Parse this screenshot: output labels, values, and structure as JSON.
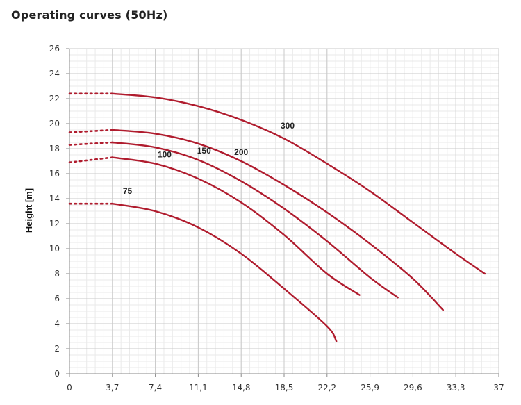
{
  "page_title": "Operating curves (50Hz)",
  "chart_data": {
    "type": "line",
    "title": "Operating curves (50Hz)",
    "xlabel": "",
    "ylabel": "Height [m]",
    "x_ticks": [
      "0",
      "3,7",
      "7,4",
      "11,1",
      "14,8",
      "18,5",
      "22,2",
      "25,9",
      "29,6",
      "33,3",
      "37"
    ],
    "y_ticks": [
      "0",
      "2",
      "4",
      "6",
      "8",
      "10",
      "12",
      "14",
      "16",
      "18",
      "20",
      "22",
      "24",
      "26"
    ],
    "xlim": [
      0,
      37
    ],
    "ylim": [
      0,
      26
    ],
    "grid": true,
    "line_color": "#b01c2e",
    "series": [
      {
        "name": "75",
        "dotted_segment": [
          [
            0,
            13.6
          ],
          [
            3.7,
            13.6
          ]
        ],
        "x": [
          3.7,
          7.4,
          11.1,
          14.8,
          18.5,
          22.2,
          23.0
        ],
        "y": [
          13.6,
          13.0,
          11.7,
          9.6,
          6.8,
          3.8,
          2.6
        ]
      },
      {
        "name": "100",
        "dotted_segment": [
          [
            0,
            16.9
          ],
          [
            3.7,
            17.3
          ]
        ],
        "x": [
          3.7,
          7.4,
          11.1,
          14.8,
          18.5,
          22.2,
          25.0
        ],
        "y": [
          17.3,
          16.8,
          15.6,
          13.7,
          11.1,
          8.0,
          6.3
        ]
      },
      {
        "name": "150",
        "dotted_segment": [
          [
            0,
            18.3
          ],
          [
            3.7,
            18.5
          ]
        ],
        "x": [
          3.7,
          7.4,
          11.1,
          14.8,
          18.5,
          22.2,
          25.9,
          28.3
        ],
        "y": [
          18.5,
          18.1,
          17.1,
          15.4,
          13.2,
          10.6,
          7.7,
          6.1
        ]
      },
      {
        "name": "200",
        "dotted_segment": [
          [
            0,
            19.3
          ],
          [
            3.7,
            19.5
          ]
        ],
        "x": [
          3.7,
          7.4,
          11.1,
          14.8,
          18.5,
          22.2,
          25.9,
          29.6,
          32.2
        ],
        "y": [
          19.5,
          19.2,
          18.4,
          17.0,
          15.1,
          12.9,
          10.4,
          7.6,
          5.1
        ]
      },
      {
        "name": "300",
        "dotted_segment": [
          [
            0,
            22.4
          ],
          [
            3.7,
            22.4
          ]
        ],
        "x": [
          3.7,
          7.4,
          11.1,
          14.8,
          18.5,
          22.2,
          25.9,
          29.6,
          33.3,
          35.8
        ],
        "y": [
          22.4,
          22.1,
          21.4,
          20.3,
          18.8,
          16.8,
          14.6,
          12.1,
          9.6,
          8.0
        ]
      }
    ],
    "series_labels": [
      {
        "text": "75",
        "x": 4.6,
        "y": 14.4
      },
      {
        "text": "100",
        "x": 7.6,
        "y": 17.3
      },
      {
        "text": "150",
        "x": 11.0,
        "y": 17.6
      },
      {
        "text": "200",
        "x": 14.2,
        "y": 17.5
      },
      {
        "text": "300",
        "x": 18.2,
        "y": 19.6
      }
    ]
  }
}
